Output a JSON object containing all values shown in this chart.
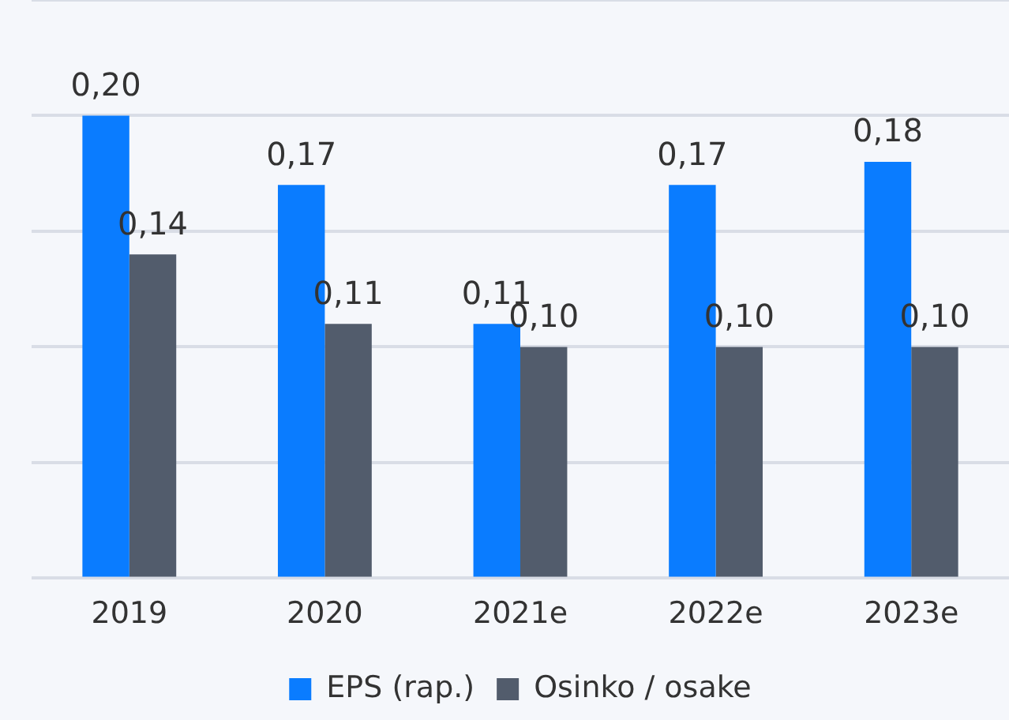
{
  "chart_data": {
    "type": "bar",
    "categories": [
      "2019",
      "2020",
      "2021e",
      "2022e",
      "2023e"
    ],
    "series": [
      {
        "name": "EPS (rap.)",
        "color": "#0a7cff",
        "values": [
          0.2,
          0.17,
          0.11,
          0.17,
          0.18
        ],
        "value_labels": [
          "0,20",
          "0,17",
          "0,11",
          "0,17",
          "0,18"
        ]
      },
      {
        "name": "Osinko / osake",
        "color": "#525c6c",
        "values": [
          0.14,
          0.11,
          0.1,
          0.1,
          0.1
        ],
        "value_labels": [
          "0,14",
          "0,11",
          "0,10",
          "0,10",
          "0,10"
        ]
      }
    ],
    "ylim": [
      0,
      0.25
    ],
    "yticks": [
      {
        "value": 0,
        "label": null
      },
      {
        "value": 0.05,
        "label": null
      },
      {
        "value": 0.1,
        "label": null
      },
      {
        "value": 0.15,
        "label": null
      },
      {
        "value": 0.2,
        "label": null
      },
      {
        "value": 0.25,
        "label": null
      }
    ],
    "grid": "y",
    "legend": "bottom",
    "tick_labels": "x"
  }
}
